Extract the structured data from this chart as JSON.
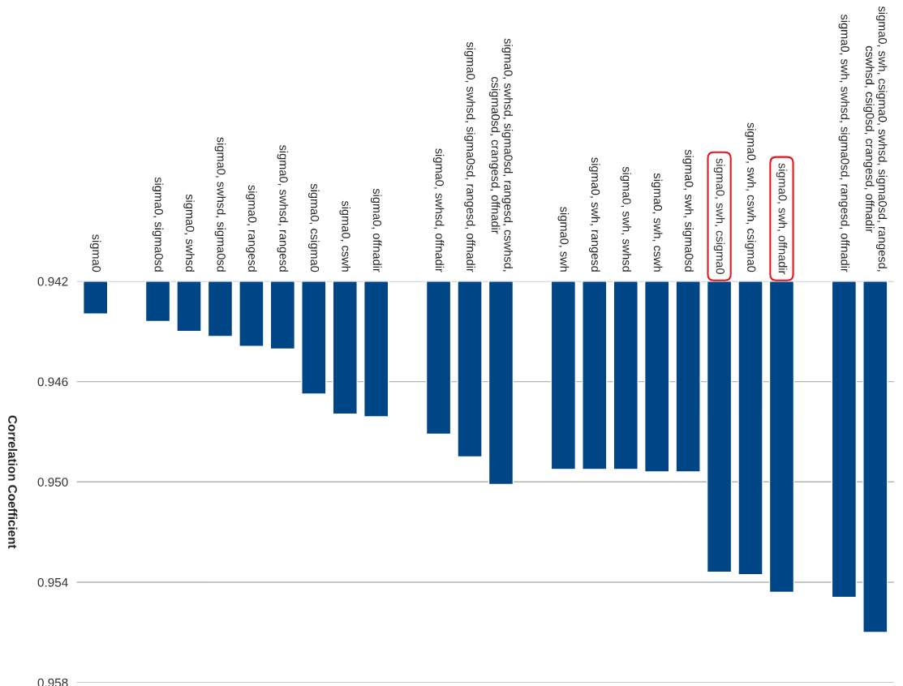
{
  "chart_data": {
    "type": "bar",
    "ylabel": "Correlation Coefficient",
    "categories": [
      "sigma0",
      null,
      "sigma0, sigma0sd",
      "sigma0, swhsd",
      "sigma0, swhsd, sigma0sd",
      "sigma0, rangesd",
      "sigma0, swhsd, rangesd",
      "sigma0, csigma0",
      "sigma0, cswh",
      "sigma0, offnadir",
      null,
      "sigma0, swhsd, offnadir",
      "sigma0, swhsd, sigma0sd, rangesd, offnadir",
      "sigma0, swhsd, sigma0sd, rangesd, cswhsd,\ncsigma0sd, crangesd, offnadir",
      null,
      "sigma0, swh",
      "sigma0, swh, rangesd",
      "sigma0, swh, swhsd",
      "sigma0, swh, cswh",
      "sigma0, swh, sigma0sd",
      null,
      "sigma0, swh, cswh, csigma0",
      null,
      null,
      "sigma0, swh, swhsd, sigma0sd, rangesd, offnadir",
      "sigma0, swh, csigma0, swhsd, sigma0sd, rangesd,\ncswhsd, csig0sd, crangesd, offnadir"
    ],
    "values": [
      0.9433,
      null,
      0.9436,
      0.944,
      0.9442,
      0.9446,
      0.9447,
      0.9465,
      0.9473,
      0.9474,
      null,
      0.9481,
      0.949,
      0.9501,
      null,
      0.9495,
      0.9495,
      0.9495,
      0.9496,
      0.9496,
      0.9536,
      0.9537,
      0.9544,
      null,
      0.9546,
      0.956
    ],
    "color": "#004586",
    "ylim": [
      0.958,
      0.942
    ],
    "yticks": [
      0.942,
      0.946,
      {
        "value": 0.95,
        "label": "0.950"
      },
      0.954,
      0.958
    ],
    "grid": "y",
    "annotations": [
      "sigma0, swh, csigma0",
      "sigma0, swh, offnadir"
    ]
  }
}
